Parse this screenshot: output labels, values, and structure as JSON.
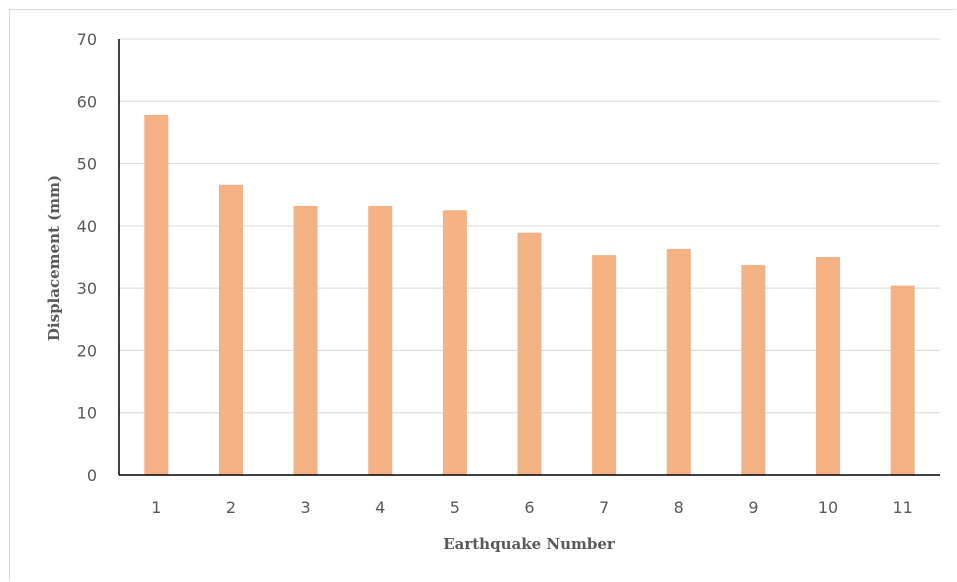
{
  "chart_data": {
    "type": "bar",
    "categories": [
      "1",
      "2",
      "3",
      "4",
      "5",
      "6",
      "7",
      "8",
      "9",
      "10",
      "11"
    ],
    "values": [
      57.8,
      46.6,
      43.2,
      43.2,
      42.5,
      38.9,
      35.3,
      36.3,
      33.7,
      35.0,
      30.4
    ],
    "xlabel": "Earthquake Number",
    "ylabel": "Displacement (mm)",
    "ylim": [
      0,
      70
    ],
    "yticks": [
      "0",
      "10",
      "20",
      "30",
      "40",
      "50",
      "60",
      "70"
    ],
    "grid": true,
    "legend": "none",
    "bar_color": "#f4b183",
    "grid_color": "#d9d9d9",
    "axis_color": "#000000",
    "text_color": "#595959"
  }
}
